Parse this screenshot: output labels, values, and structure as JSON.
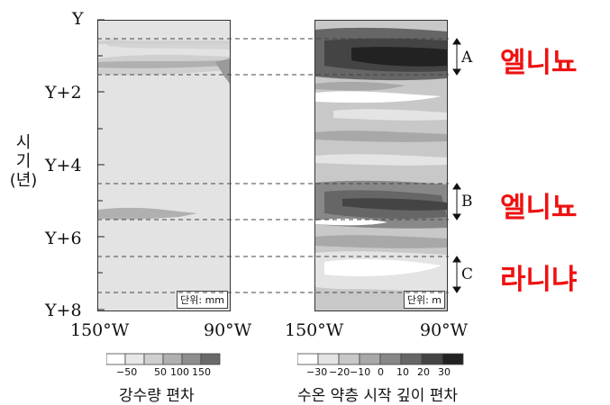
{
  "y_axis": {
    "title_chars": [
      "시",
      "기",
      "(년)"
    ],
    "ticks": [
      "Y",
      "Y+2",
      "Y+4",
      "Y+6",
      "Y+8"
    ]
  },
  "left_panel": {
    "x_ticks": [
      "150°W",
      "90°W"
    ],
    "unit": "단위: mm"
  },
  "right_panel": {
    "x_ticks": [
      "150°W",
      "90°W"
    ],
    "unit": "단위: m"
  },
  "periods": [
    {
      "label": "A",
      "note": "엘니뇨",
      "start_year": 0.2,
      "end_year": 0.8
    },
    {
      "label": "B",
      "note": "엘니뇨",
      "start_year": 4.5,
      "end_year": 5.5
    },
    {
      "label": "C",
      "note": "라니냐",
      "start_year": 6.5,
      "end_year": 7.5
    }
  ],
  "legends": {
    "precip": {
      "title": "강수량 편차",
      "labels": [
        "−50",
        "50",
        "100",
        "150"
      ],
      "colors": [
        "#ffffff",
        "#e8e8e8",
        "#cfcfcf",
        "#b0b0b0",
        "#8e8e8e",
        "#6a6a6a"
      ]
    },
    "thermo": {
      "title": "수온 약층 시작 깊이 편차",
      "labels": [
        "−30",
        "−20",
        "−10",
        "0",
        "10",
        "20",
        "30"
      ],
      "colors": [
        "#ffffff",
        "#e4e4e4",
        "#c8c8c8",
        "#a8a8a8",
        "#888888",
        "#666666",
        "#444444",
        "#222222"
      ]
    }
  }
}
